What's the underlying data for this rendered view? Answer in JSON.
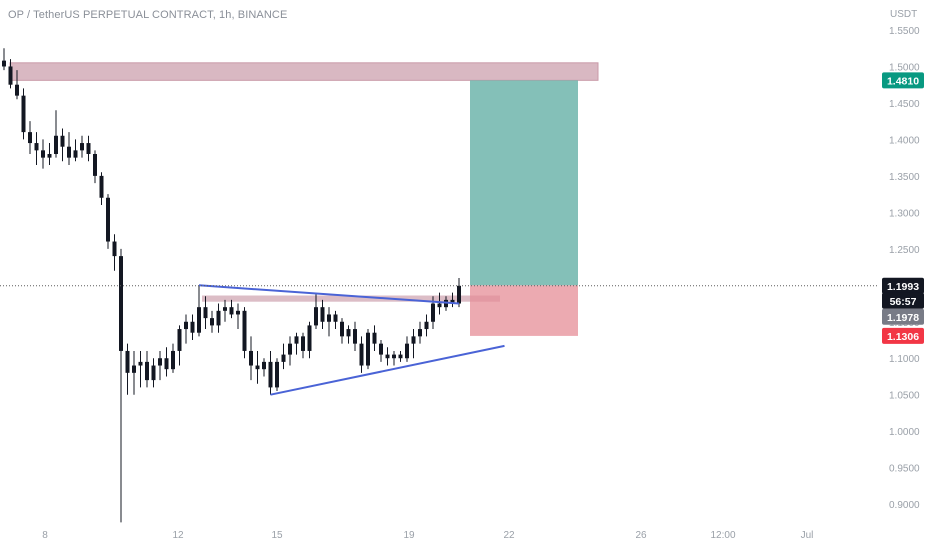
{
  "header": {
    "title": "OP / TetherUS PERPETUAL CONTRACT, 1h, BINANCE"
  },
  "colors": {
    "background": "#ffffff",
    "candle": "#131722",
    "price_line": "#5b5b5b",
    "trend_line": "#4a63d6",
    "zone_fill": "#c99aa8",
    "target_fill": "#6fb5ab",
    "stop_fill": "#e58d97",
    "tag_target": "#089981",
    "tag_price": "#131722",
    "tag_grey": "#787b86",
    "tag_stop": "#f23645"
  },
  "chart_data": {
    "type": "candlestick",
    "title": "OP / TetherUS PERPETUAL CONTRACT, 1h, BINANCE",
    "unit": "USDT",
    "ylim": [
      0.87,
      1.55
    ],
    "y_ticks": [
      "0.9000",
      "0.9500",
      "1.0000",
      "1.0500",
      "1.1000",
      "1.1500",
      "1.2000",
      "1.2500",
      "1.3000",
      "1.3500",
      "1.4000",
      "1.4500",
      "1.5000",
      "1.5500"
    ],
    "x_ticks": [
      "8",
      "12",
      "15",
      "19",
      "22",
      "26",
      "12:00",
      "Jul"
    ],
    "price_tags": [
      {
        "name": "target",
        "value": "1.4810",
        "color": "#089981"
      },
      {
        "name": "last-price",
        "value": "1.1993",
        "color": "#131722"
      },
      {
        "name": "countdown",
        "value": "56:57",
        "color": "#131722"
      },
      {
        "name": "mid",
        "value": "1.1978",
        "color": "#787b86"
      },
      {
        "name": "stop",
        "value": "1.1306",
        "color": "#f23645"
      }
    ],
    "last_price": 1.1993,
    "position": {
      "entry": 1.2,
      "target": 1.481,
      "stop": 1.1306
    },
    "resistance_zone": {
      "low": 1.481,
      "high": 1.505
    },
    "support_zone": {
      "low": 1.1775,
      "high": 1.186
    },
    "trendlines": [
      {
        "name": "upper",
        "from": {
          "bar": 30,
          "price": 1.2
        },
        "to": {
          "bar": 70,
          "price": 1.175
        }
      },
      {
        "name": "lower",
        "from": {
          "bar": 41,
          "price": 1.05
        },
        "to": {
          "bar": 77,
          "price": 1.117
        }
      }
    ],
    "candles": [
      [
        1.508,
        1.525,
        1.495,
        1.5
      ],
      [
        1.5,
        1.51,
        1.47,
        1.475
      ],
      [
        1.475,
        1.495,
        1.455,
        1.46
      ],
      [
        1.46,
        1.47,
        1.4,
        1.41
      ],
      [
        1.41,
        1.425,
        1.38,
        1.395
      ],
      [
        1.395,
        1.41,
        1.365,
        1.385
      ],
      [
        1.385,
        1.4,
        1.36,
        1.375
      ],
      [
        1.375,
        1.395,
        1.365,
        1.38
      ],
      [
        1.38,
        1.44,
        1.375,
        1.405
      ],
      [
        1.405,
        1.415,
        1.37,
        1.39
      ],
      [
        1.39,
        1.41,
        1.365,
        1.375
      ],
      [
        1.375,
        1.4,
        1.37,
        1.385
      ],
      [
        1.385,
        1.405,
        1.375,
        1.395
      ],
      [
        1.395,
        1.405,
        1.37,
        1.38
      ],
      [
        1.38,
        1.385,
        1.34,
        1.35
      ],
      [
        1.35,
        1.355,
        1.31,
        1.32
      ],
      [
        1.32,
        1.325,
        1.25,
        1.26
      ],
      [
        1.26,
        1.27,
        1.22,
        1.24
      ],
      [
        1.24,
        1.25,
        0.875,
        1.11
      ],
      [
        1.11,
        1.12,
        1.05,
        1.08
      ],
      [
        1.08,
        1.11,
        1.05,
        1.09
      ],
      [
        1.09,
        1.11,
        1.06,
        1.095
      ],
      [
        1.095,
        1.11,
        1.06,
        1.07
      ],
      [
        1.07,
        1.1,
        1.06,
        1.09
      ],
      [
        1.09,
        1.11,
        1.07,
        1.1
      ],
      [
        1.1,
        1.115,
        1.075,
        1.085
      ],
      [
        1.085,
        1.12,
        1.08,
        1.11
      ],
      [
        1.11,
        1.145,
        1.09,
        1.14
      ],
      [
        1.14,
        1.16,
        1.12,
        1.15
      ],
      [
        1.15,
        1.16,
        1.125,
        1.135
      ],
      [
        1.135,
        1.2,
        1.13,
        1.17
      ],
      [
        1.17,
        1.185,
        1.14,
        1.155
      ],
      [
        1.155,
        1.165,
        1.135,
        1.145
      ],
      [
        1.145,
        1.175,
        1.135,
        1.165
      ],
      [
        1.165,
        1.18,
        1.15,
        1.17
      ],
      [
        1.17,
        1.18,
        1.155,
        1.16
      ],
      [
        1.16,
        1.175,
        1.14,
        1.165
      ],
      [
        1.165,
        1.17,
        1.1,
        1.11
      ],
      [
        1.11,
        1.13,
        1.07,
        1.09
      ],
      [
        1.09,
        1.11,
        1.065,
        1.085
      ],
      [
        1.085,
        1.1,
        1.075,
        1.095
      ],
      [
        1.095,
        1.11,
        1.05,
        1.06
      ],
      [
        1.06,
        1.1,
        1.055,
        1.095
      ],
      [
        1.095,
        1.12,
        1.085,
        1.105
      ],
      [
        1.105,
        1.13,
        1.09,
        1.12
      ],
      [
        1.12,
        1.135,
        1.105,
        1.13
      ],
      [
        1.13,
        1.135,
        1.1,
        1.11
      ],
      [
        1.11,
        1.15,
        1.1,
        1.145
      ],
      [
        1.145,
        1.19,
        1.14,
        1.17
      ],
      [
        1.17,
        1.18,
        1.14,
        1.15
      ],
      [
        1.15,
        1.17,
        1.13,
        1.16
      ],
      [
        1.16,
        1.165,
        1.14,
        1.15
      ],
      [
        1.15,
        1.155,
        1.12,
        1.13
      ],
      [
        1.13,
        1.145,
        1.12,
        1.14
      ],
      [
        1.14,
        1.15,
        1.11,
        1.12
      ],
      [
        1.12,
        1.13,
        1.08,
        1.09
      ],
      [
        1.09,
        1.14,
        1.085,
        1.135
      ],
      [
        1.135,
        1.145,
        1.11,
        1.12
      ],
      [
        1.12,
        1.125,
        1.095,
        1.105
      ],
      [
        1.105,
        1.115,
        1.09,
        1.1
      ],
      [
        1.1,
        1.11,
        1.09,
        1.105
      ],
      [
        1.105,
        1.11,
        1.095,
        1.1
      ],
      [
        1.1,
        1.13,
        1.095,
        1.12
      ],
      [
        1.12,
        1.14,
        1.1,
        1.13
      ],
      [
        1.13,
        1.15,
        1.12,
        1.14
      ],
      [
        1.14,
        1.16,
        1.13,
        1.15
      ],
      [
        1.15,
        1.185,
        1.14,
        1.175
      ],
      [
        1.175,
        1.19,
        1.16,
        1.17
      ],
      [
        1.17,
        1.185,
        1.165,
        1.18
      ],
      [
        1.18,
        1.19,
        1.17,
        1.175
      ],
      [
        1.175,
        1.21,
        1.17,
        1.1993
      ]
    ]
  }
}
